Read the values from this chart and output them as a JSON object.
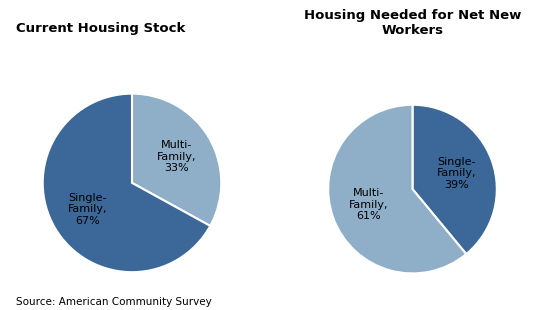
{
  "chart1_title": "Current Housing Stock",
  "chart2_title": "Housing Needed for Net New\nWorkers",
  "chart1_labels": [
    "Multi-\nFamily,\n33%",
    "Single-\nFamily,\n67%"
  ],
  "chart1_values": [
    33,
    67
  ],
  "chart1_colors": [
    "#8faec8",
    "#3b6899"
  ],
  "chart1_startangle": 90,
  "chart2_labels": [
    "Single-\nFamily,\n39%",
    "Multi-\nFamily,\n61%"
  ],
  "chart2_values": [
    39,
    61
  ],
  "chart2_colors": [
    "#3b6899",
    "#8faec8"
  ],
  "chart2_startangle": 90,
  "source_text": "Source: American Community Survey",
  "background_color": "#ffffff",
  "title_fontsize": 9.5,
  "label_fontsize": 8,
  "source_fontsize": 7.5
}
